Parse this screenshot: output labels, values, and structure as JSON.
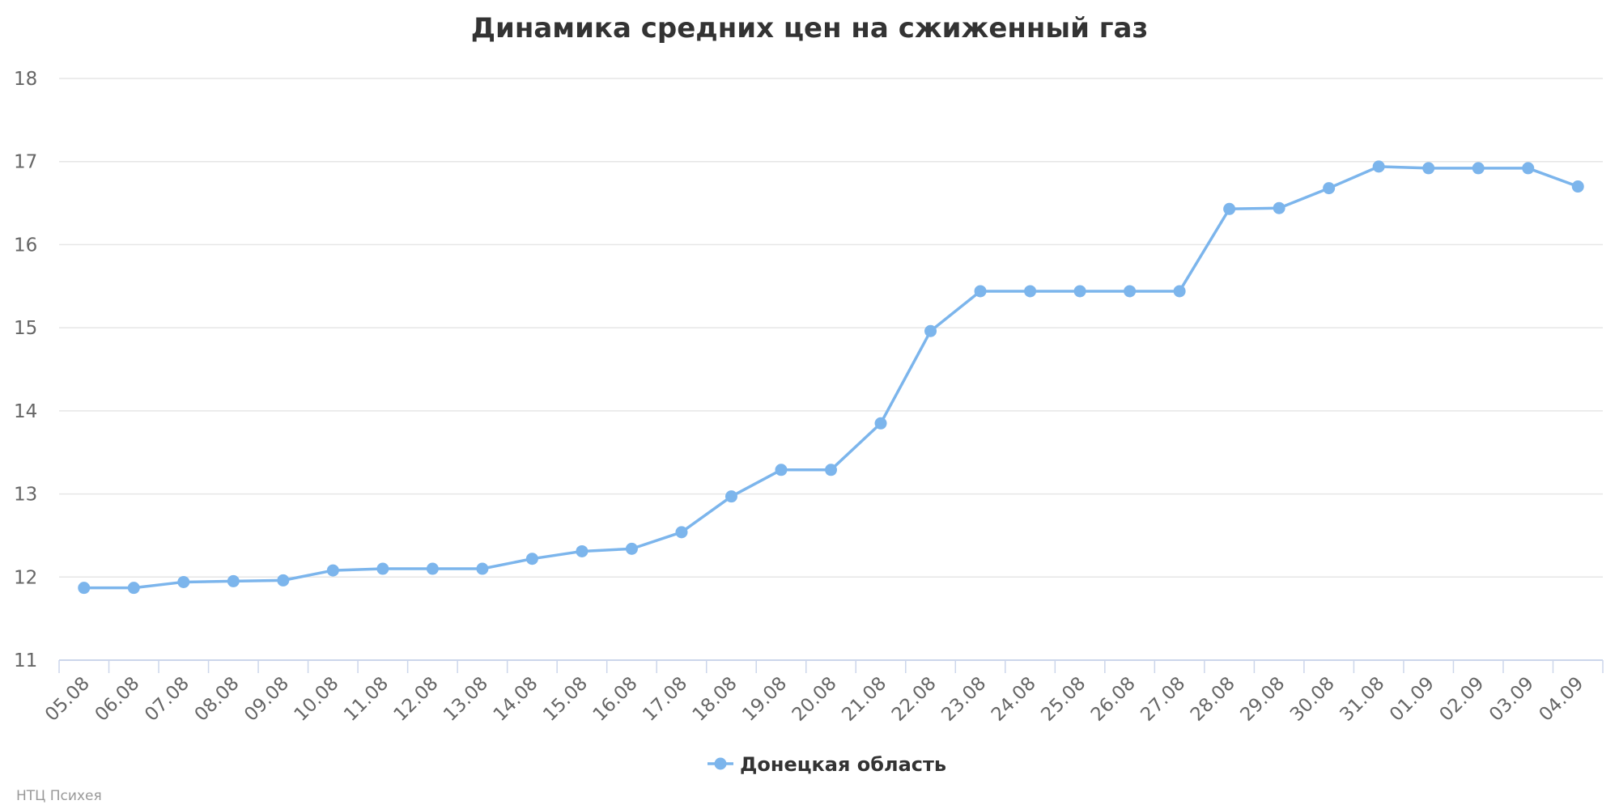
{
  "chart_data": {
    "type": "line",
    "title": "Динамика средних цен на сжиженный газ",
    "xlabel": "",
    "ylabel": "",
    "categories": [
      "05.08",
      "06.08",
      "07.08",
      "08.08",
      "09.08",
      "10.08",
      "11.08",
      "12.08",
      "13.08",
      "14.08",
      "15.08",
      "16.08",
      "17.08",
      "18.08",
      "19.08",
      "20.08",
      "21.08",
      "22.08",
      "23.08",
      "24.08",
      "25.08",
      "26.08",
      "27.08",
      "28.08",
      "29.08",
      "30.08",
      "31.08",
      "01.09",
      "02.09",
      "03.09",
      "04.09"
    ],
    "series": [
      {
        "name": "Донецкая область",
        "color": "#7cb5ec",
        "values": [
          11.87,
          11.87,
          11.94,
          11.95,
          11.96,
          12.08,
          12.1,
          12.1,
          12.1,
          12.22,
          12.31,
          12.34,
          12.54,
          12.97,
          13.29,
          13.29,
          13.85,
          14.96,
          15.44,
          15.44,
          15.44,
          15.44,
          15.44,
          16.43,
          16.44,
          16.68,
          16.94,
          16.92,
          16.92,
          16.92,
          16.7
        ]
      }
    ],
    "ylim": [
      11,
      18
    ],
    "yticks": [
      11,
      12,
      13,
      14,
      15,
      16,
      17,
      18
    ],
    "grid": true,
    "legend_position": "bottom-center"
  },
  "credits": "НТЦ Психея"
}
